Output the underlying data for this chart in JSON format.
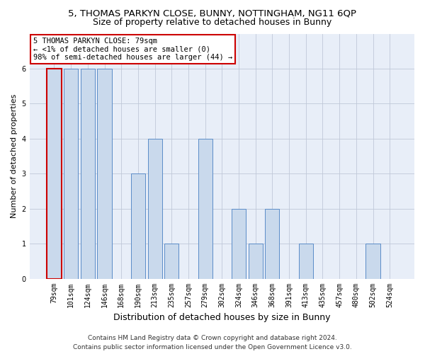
{
  "title": "5, THOMAS PARKYN CLOSE, BUNNY, NOTTINGHAM, NG11 6QP",
  "subtitle": "Size of property relative to detached houses in Bunny",
  "xlabel": "Distribution of detached houses by size in Bunny",
  "ylabel": "Number of detached properties",
  "categories": [
    "79sqm",
    "101sqm",
    "124sqm",
    "146sqm",
    "168sqm",
    "190sqm",
    "213sqm",
    "235sqm",
    "257sqm",
    "279sqm",
    "302sqm",
    "324sqm",
    "346sqm",
    "368sqm",
    "391sqm",
    "413sqm",
    "435sqm",
    "457sqm",
    "480sqm",
    "502sqm",
    "524sqm"
  ],
  "values": [
    6,
    6,
    6,
    6,
    0,
    3,
    4,
    1,
    0,
    4,
    0,
    2,
    1,
    2,
    0,
    1,
    0,
    0,
    0,
    1,
    0
  ],
  "highlight_index": 0,
  "bar_color": "#c9d9ec",
  "bar_edge_color": "#5b8cc8",
  "highlight_bar_edge_color": "#cc0000",
  "annotation_box_text": "5 THOMAS PARKYN CLOSE: 79sqm\n← <1% of detached houses are smaller (0)\n98% of semi-detached houses are larger (44) →",
  "annotation_box_edge_color": "#cc0000",
  "ylim": [
    0,
    7
  ],
  "yticks": [
    0,
    1,
    2,
    3,
    4,
    5,
    6
  ],
  "footer_line1": "Contains HM Land Registry data © Crown copyright and database right 2024.",
  "footer_line2": "Contains public sector information licensed under the Open Government Licence v3.0.",
  "bg_color": "#e8eef8",
  "grid_color": "#c0c8d8",
  "title_fontsize": 9.5,
  "subtitle_fontsize": 9,
  "xlabel_fontsize": 9,
  "ylabel_fontsize": 8,
  "tick_fontsize": 7,
  "annotation_fontsize": 7.5,
  "footer_fontsize": 6.5
}
